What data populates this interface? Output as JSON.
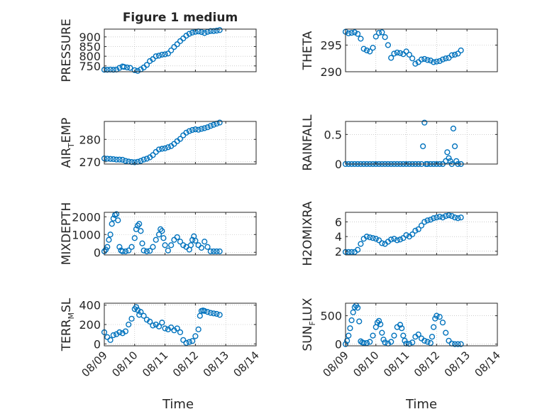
{
  "figure": {
    "title": "Figure 1 medium",
    "xlabel": "Time"
  },
  "colors": {
    "marker": "#0072BD",
    "axis": "#262626",
    "grid": "#b0b0b0",
    "background": "#ffffff"
  },
  "chart_data": [
    {
      "type": "scatter",
      "name": "PRESSURE",
      "ylabel": "PRESSURE",
      "ylim": [
        720,
        940
      ],
      "yticks": [
        750,
        800,
        850,
        900
      ],
      "ytick_labels": [
        "750",
        "800",
        "850",
        "900"
      ],
      "xlim": [
        0,
        5
      ],
      "xticks": [
        0,
        1,
        2,
        3,
        4,
        5
      ],
      "xtick_labels": [
        "08/09",
        "08/10",
        "08/11",
        "08/12",
        "08/13",
        "08/14"
      ],
      "show_xticklabels": false,
      "grid": true,
      "x": [
        0.0,
        0.1,
        0.2,
        0.3,
        0.4,
        0.5,
        0.6,
        0.65,
        0.75,
        0.85,
        1.0,
        1.1,
        1.2,
        1.3,
        1.4,
        1.5,
        1.6,
        1.7,
        1.8,
        1.9,
        2.0,
        2.1,
        2.2,
        2.3,
        2.4,
        2.5,
        2.6,
        2.7,
        2.8,
        2.9,
        3.0,
        3.1,
        3.2,
        3.3,
        3.4,
        3.5,
        3.6,
        3.7,
        3.8
      ],
      "y": [
        730,
        730,
        731,
        730,
        731,
        740,
        747,
        745,
        742,
        740,
        728,
        724,
        732,
        742,
        755,
        775,
        785,
        800,
        803,
        808,
        810,
        814,
        830,
        848,
        862,
        878,
        892,
        906,
        916,
        922,
        926,
        928,
        925,
        920,
        926,
        930,
        930,
        932,
        935
      ]
    },
    {
      "type": "scatter",
      "name": "THETA",
      "ylabel": "THETA",
      "ylim": [
        290,
        298
      ],
      "yticks": [
        290,
        295
      ],
      "ytick_labels": [
        "290",
        "295"
      ],
      "xlim": [
        0,
        5
      ],
      "xticks": [
        0,
        1,
        2,
        3,
        4,
        5
      ],
      "xtick_labels": [
        "08/09",
        "08/10",
        "08/11",
        "08/12",
        "08/13",
        "08/14"
      ],
      "show_xticklabels": false,
      "grid": true,
      "x": [
        0.0,
        0.1,
        0.2,
        0.3,
        0.4,
        0.5,
        0.6,
        0.7,
        0.8,
        0.9,
        1.0,
        1.1,
        1.2,
        1.3,
        1.4,
        1.5,
        1.6,
        1.7,
        1.8,
        1.9,
        2.0,
        2.1,
        2.2,
        2.3,
        2.4,
        2.5,
        2.6,
        2.7,
        2.8,
        2.9,
        3.0,
        3.1,
        3.2,
        3.3,
        3.4,
        3.5,
        3.6,
        3.7,
        3.8
      ],
      "y": [
        297.5,
        297.2,
        297.3,
        297.4,
        297.1,
        296.2,
        294.3,
        294.0,
        293.8,
        294.5,
        296.6,
        297.3,
        297.4,
        296.5,
        295.0,
        292.6,
        293.4,
        293.6,
        293.5,
        293.3,
        293.8,
        293.2,
        292.5,
        291.5,
        291.8,
        292.3,
        292.4,
        292.2,
        292.1,
        291.8,
        291.9,
        292.0,
        292.3,
        292.5,
        292.6,
        293.1,
        293.2,
        293.4,
        294.0
      ]
    },
    {
      "type": "scatter",
      "name": "AIR_TEMP",
      "ylabel": "AIR_TEMP",
      "ylim": [
        269,
        288
      ],
      "yticks": [
        270,
        280
      ],
      "ytick_labels": [
        "270",
        "280"
      ],
      "xlim": [
        0,
        5
      ],
      "xticks": [
        0,
        1,
        2,
        3,
        4,
        5
      ],
      "xtick_labels": [
        "08/09",
        "08/10",
        "08/11",
        "08/12",
        "08/13",
        "08/14"
      ],
      "show_xticklabels": false,
      "grid": true,
      "x": [
        0.0,
        0.1,
        0.2,
        0.3,
        0.4,
        0.5,
        0.6,
        0.7,
        0.8,
        0.9,
        1.0,
        1.1,
        1.2,
        1.3,
        1.4,
        1.5,
        1.6,
        1.7,
        1.8,
        1.9,
        2.0,
        2.1,
        2.2,
        2.3,
        2.4,
        2.5,
        2.6,
        2.7,
        2.8,
        2.9,
        3.0,
        3.1,
        3.2,
        3.3,
        3.4,
        3.5,
        3.6,
        3.7,
        3.8
      ],
      "y": [
        271.5,
        271.4,
        271.3,
        271.2,
        271.0,
        271.0,
        270.9,
        270.4,
        270.1,
        269.9,
        269.8,
        270.0,
        270.4,
        271.0,
        271.4,
        272.0,
        273.0,
        274.4,
        275.5,
        275.8,
        276.0,
        276.5,
        277.0,
        278.0,
        279.2,
        280.2,
        281.8,
        283.0,
        283.7,
        284.2,
        284.5,
        284.3,
        284.7,
        285.0,
        285.4,
        286.0,
        286.5,
        287.0,
        287.5
      ]
    },
    {
      "type": "scatter",
      "name": "RAINFALL",
      "ylabel": "RAINFALL",
      "ylim": [
        0,
        0.72
      ],
      "yticks": [
        0,
        0.5
      ],
      "ytick_labels": [
        "0",
        "0.5"
      ],
      "xlim": [
        0,
        5
      ],
      "xticks": [
        0,
        1,
        2,
        3,
        4,
        5
      ],
      "xtick_labels": [
        "08/09",
        "08/10",
        "08/11",
        "08/12",
        "08/13",
        "08/14"
      ],
      "show_xticklabels": false,
      "grid": true,
      "x": [
        0.0,
        0.1,
        0.2,
        0.3,
        0.4,
        0.5,
        0.6,
        0.7,
        0.8,
        0.9,
        1.0,
        1.1,
        1.2,
        1.3,
        1.4,
        1.5,
        1.6,
        1.7,
        1.8,
        1.9,
        2.0,
        2.1,
        2.2,
        2.3,
        2.4,
        2.5,
        2.55,
        2.6,
        2.65,
        2.7,
        2.8,
        2.9,
        3.0,
        3.1,
        3.2,
        3.3,
        3.35,
        3.4,
        3.45,
        3.5,
        3.55,
        3.6,
        3.65,
        3.7,
        3.8
      ],
      "y": [
        0,
        0,
        0,
        0,
        0,
        0,
        0,
        0,
        0,
        0,
        0,
        0,
        0,
        0,
        0,
        0,
        0,
        0,
        0,
        0,
        0,
        0,
        0,
        0,
        0,
        0,
        0.3,
        0.7,
        0,
        0,
        0,
        0,
        0,
        0,
        0,
        0.05,
        0.2,
        0.1,
        0.05,
        0,
        0.6,
        0.3,
        0.05,
        0,
        0
      ]
    },
    {
      "type": "scatter",
      "name": "MIXDEPTH",
      "ylabel": "MIXDEPTH",
      "ylim": [
        -150,
        2250
      ],
      "yticks": [
        0,
        1000,
        2000
      ],
      "ytick_labels": [
        "0",
        "1000",
        "2000"
      ],
      "xlim": [
        0,
        5
      ],
      "xticks": [
        0,
        1,
        2,
        3,
        4,
        5
      ],
      "xtick_labels": [
        "08/09",
        "08/10",
        "08/11",
        "08/12",
        "08/13",
        "08/14"
      ],
      "show_xticklabels": false,
      "grid": true,
      "x": [
        0.0,
        0.05,
        0.1,
        0.15,
        0.2,
        0.25,
        0.3,
        0.35,
        0.4,
        0.45,
        0.5,
        0.55,
        0.6,
        0.7,
        0.8,
        0.9,
        1.0,
        1.05,
        1.1,
        1.15,
        1.2,
        1.25,
        1.3,
        1.4,
        1.5,
        1.6,
        1.7,
        1.8,
        1.85,
        1.9,
        1.95,
        2.0,
        2.1,
        2.2,
        2.3,
        2.4,
        2.5,
        2.6,
        2.7,
        2.8,
        2.85,
        2.9,
        2.95,
        3.0,
        3.1,
        3.2,
        3.3,
        3.4,
        3.5,
        3.6,
        3.7,
        3.8
      ],
      "y": [
        50,
        150,
        300,
        700,
        1000,
        1600,
        1900,
        2100,
        2150,
        1800,
        300,
        100,
        50,
        50,
        100,
        300,
        800,
        1300,
        1500,
        1600,
        1200,
        500,
        100,
        50,
        80,
        300,
        700,
        1000,
        1300,
        1200,
        800,
        400,
        100,
        400,
        700,
        850,
        600,
        400,
        300,
        150,
        400,
        700,
        900,
        650,
        400,
        250,
        600,
        300,
        50,
        50,
        50,
        50
      ]
    },
    {
      "type": "scatter",
      "name": "H2OMIXRA",
      "ylabel": "H2OMIXRA",
      "ylim": [
        1.5,
        7.3
      ],
      "yticks": [
        2,
        4,
        6
      ],
      "ytick_labels": [
        "2",
        "4",
        "6"
      ],
      "xlim": [
        0,
        5
      ],
      "xticks": [
        0,
        1,
        2,
        3,
        4,
        5
      ],
      "xtick_labels": [
        "08/09",
        "08/10",
        "08/11",
        "08/12",
        "08/13",
        "08/14"
      ],
      "show_xticklabels": false,
      "grid": true,
      "x": [
        0.0,
        0.1,
        0.2,
        0.3,
        0.4,
        0.5,
        0.6,
        0.7,
        0.8,
        0.9,
        1.0,
        1.1,
        1.2,
        1.3,
        1.4,
        1.5,
        1.6,
        1.7,
        1.8,
        1.9,
        2.0,
        2.1,
        2.2,
        2.3,
        2.4,
        2.5,
        2.6,
        2.7,
        2.8,
        2.9,
        3.0,
        3.1,
        3.2,
        3.3,
        3.4,
        3.5,
        3.6,
        3.7,
        3.8
      ],
      "y": [
        1.9,
        1.9,
        1.9,
        1.9,
        2.2,
        3.0,
        3.7,
        4.0,
        3.9,
        3.8,
        3.7,
        3.5,
        3.1,
        3.0,
        3.3,
        3.6,
        3.7,
        3.5,
        3.6,
        3.8,
        4.2,
        4.0,
        4.3,
        4.8,
        5.0,
        5.5,
        6.0,
        6.2,
        6.3,
        6.5,
        6.6,
        6.7,
        6.6,
        6.8,
        6.9,
        6.8,
        6.6,
        6.5,
        6.6
      ]
    },
    {
      "type": "scatter",
      "name": "TERR_MSL",
      "ylabel": "TERR_MSL",
      "ylim": [
        -20,
        420
      ],
      "yticks": [
        0,
        200,
        400
      ],
      "ytick_labels": [
        "0",
        "200",
        "400"
      ],
      "xlim": [
        0,
        5
      ],
      "xticks": [
        0,
        1,
        2,
        3,
        4,
        5
      ],
      "xtick_labels": [
        "08/09",
        "08/10",
        "08/11",
        "08/12",
        "08/13",
        "08/14"
      ],
      "show_xticklabels": true,
      "grid": true,
      "x": [
        0.0,
        0.1,
        0.2,
        0.3,
        0.4,
        0.5,
        0.6,
        0.7,
        0.8,
        0.9,
        1.0,
        1.05,
        1.1,
        1.15,
        1.2,
        1.3,
        1.4,
        1.5,
        1.6,
        1.7,
        1.8,
        1.9,
        2.0,
        2.1,
        2.2,
        2.3,
        2.4,
        2.5,
        2.6,
        2.7,
        2.8,
        2.9,
        3.0,
        3.1,
        3.15,
        3.2,
        3.25,
        3.3,
        3.4,
        3.5,
        3.6,
        3.7,
        3.8
      ],
      "y": [
        120,
        70,
        40,
        90,
        100,
        120,
        110,
        130,
        200,
        260,
        360,
        380,
        350,
        300,
        330,
        290,
        250,
        230,
        190,
        200,
        180,
        220,
        160,
        150,
        170,
        140,
        160,
        120,
        40,
        10,
        20,
        30,
        80,
        150,
        290,
        340,
        345,
        340,
        330,
        320,
        315,
        310,
        300
      ]
    },
    {
      "type": "scatter",
      "name": "SUN_FLUX",
      "ylabel": "SUN_FLUX",
      "ylim": [
        -30,
        720
      ],
      "yticks": [
        0,
        500
      ],
      "ytick_labels": [
        "0",
        "500"
      ],
      "xlim": [
        0,
        5
      ],
      "xticks": [
        0,
        1,
        2,
        3,
        4,
        5
      ],
      "xtick_labels": [
        "08/09",
        "08/10",
        "08/11",
        "08/12",
        "08/13",
        "08/14"
      ],
      "show_xticklabels": true,
      "grid": true,
      "x": [
        0.0,
        0.05,
        0.1,
        0.15,
        0.2,
        0.25,
        0.3,
        0.35,
        0.4,
        0.45,
        0.5,
        0.55,
        0.6,
        0.7,
        0.8,
        0.9,
        1.0,
        1.05,
        1.1,
        1.15,
        1.2,
        1.25,
        1.3,
        1.4,
        1.5,
        1.6,
        1.7,
        1.8,
        1.85,
        1.9,
        1.95,
        2.0,
        2.1,
        2.2,
        2.3,
        2.4,
        2.5,
        2.6,
        2.7,
        2.8,
        2.85,
        2.9,
        2.95,
        3.0,
        3.1,
        3.2,
        3.3,
        3.4,
        3.5,
        3.6,
        3.7,
        3.8
      ],
      "y": [
        0,
        60,
        150,
        280,
        420,
        560,
        650,
        680,
        640,
        400,
        50,
        30,
        20,
        20,
        40,
        150,
        300,
        380,
        410,
        350,
        200,
        80,
        30,
        10,
        40,
        150,
        300,
        340,
        280,
        150,
        60,
        10,
        5,
        30,
        130,
        170,
        100,
        60,
        40,
        20,
        130,
        300,
        450,
        500,
        480,
        380,
        200,
        60,
        10,
        0,
        0,
        0
      ]
    }
  ]
}
